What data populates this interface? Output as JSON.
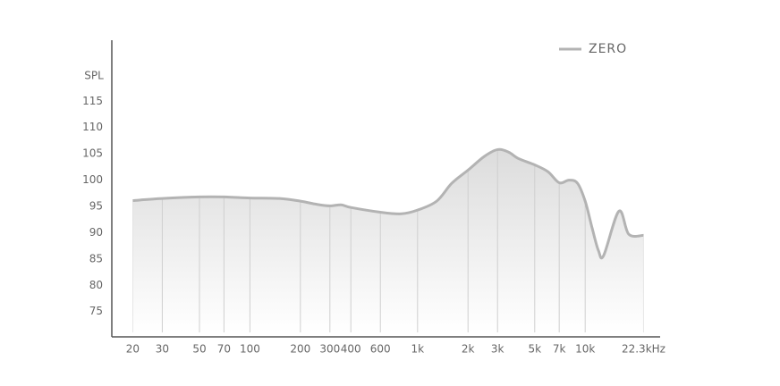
{
  "chart_data": {
    "type": "line",
    "ylabel": "SPL",
    "log_x": true,
    "grid": true,
    "legend": "top-right",
    "x": [
      20,
      30,
      50,
      70,
      100,
      150,
      200,
      250,
      300,
      350,
      400,
      600,
      800,
      1000,
      1300,
      1600,
      2000,
      2500,
      3000,
      3500,
      4000,
      5000,
      6000,
      7000,
      8000,
      9000,
      10000,
      11000,
      12000,
      12900,
      15900,
      18200,
      22300
    ],
    "series": [
      {
        "name": "ZERO",
        "color": "#b3b3b3",
        "values": [
          96.1,
          96.5,
          96.8,
          96.8,
          96.6,
          96.5,
          96.0,
          95.4,
          95.1,
          95.3,
          94.8,
          93.9,
          93.6,
          94.3,
          96.0,
          99.4,
          101.9,
          104.5,
          105.8,
          105.3,
          104.1,
          102.9,
          101.6,
          99.5,
          100.0,
          99.4,
          96.0,
          90.9,
          86.6,
          85.7,
          94.1,
          89.7,
          89.5
        ]
      }
    ],
    "xlim": [
      15,
      28000
    ],
    "ylim": [
      70.2,
      126.6
    ],
    "xticks": [
      20,
      30,
      50,
      70,
      100,
      200,
      300,
      400,
      600,
      {
        "value": 1000,
        "label": "1k"
      },
      {
        "value": 2000,
        "label": "2k"
      },
      {
        "value": 3000,
        "label": "3k"
      },
      {
        "value": 5000,
        "label": "5k"
      },
      {
        "value": 7000,
        "label": "7k"
      },
      {
        "value": 10000,
        "label": "10k"
      },
      {
        "value": 22300,
        "label": "22.3kHz"
      }
    ],
    "yticks": [
      75,
      80,
      85,
      90,
      95,
      100,
      105,
      110,
      115
    ]
  }
}
